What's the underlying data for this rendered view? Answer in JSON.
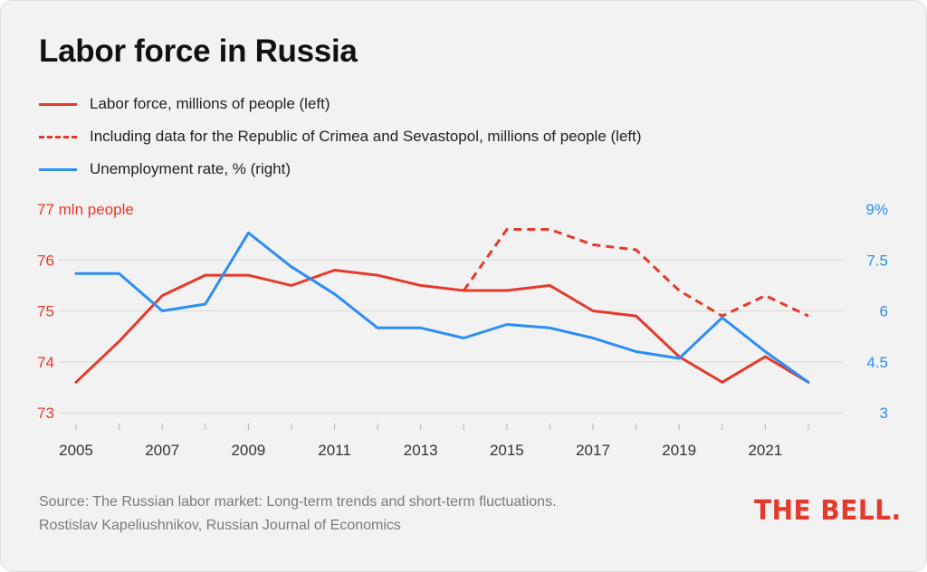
{
  "title": "Labor force in Russia",
  "legend": [
    {
      "label": "Labor force, millions of people (left)",
      "color": "#e43a2c",
      "style": "solid"
    },
    {
      "label": "Including data for the Republic of Crimea and Sevastopol, millions of people (left)",
      "color": "#e43a2c",
      "style": "dashed"
    },
    {
      "label": "Unemployment rate, % (right)",
      "color": "#2b8ef2",
      "style": "solid"
    }
  ],
  "source": "Source: The Russian labor market: Long-term trends and short-term fluctuations. Rostislav Kapeliushnikov, Russian Journal of Economics",
  "logo_text": "THE BELL.",
  "chart_data": {
    "type": "line",
    "title": "Labor force in Russia",
    "x": [
      2005,
      2006,
      2007,
      2008,
      2009,
      2010,
      2011,
      2012,
      2013,
      2014,
      2015,
      2016,
      2017,
      2018,
      2019,
      2020,
      2021,
      2022
    ],
    "x_range": [
      2004.6,
      2022.8
    ],
    "x_tick_labels": [
      "2005",
      "2007",
      "2009",
      "2011",
      "2013",
      "2015",
      "2017",
      "2019",
      "2021"
    ],
    "left_axis": {
      "ylim": [
        73,
        77
      ],
      "tick_values": [
        73,
        74,
        75,
        76,
        77
      ],
      "tick_labels": [
        "73",
        "74",
        "75",
        "76",
        "77 mln people"
      ],
      "color": "#e43a2c"
    },
    "right_axis": {
      "ylim": [
        3,
        9
      ],
      "tick_values": [
        3,
        4.5,
        6,
        7.5,
        9
      ],
      "tick_labels": [
        "3",
        "4.5",
        "6",
        "7.5",
        "9%"
      ],
      "color": "#2b8ef2"
    },
    "grid": true,
    "series": [
      {
        "name": "Labor force, millions of people (left)",
        "axis": "left",
        "color": "#e43a2c",
        "style": "solid",
        "x": [
          2005,
          2006,
          2007,
          2008,
          2009,
          2010,
          2011,
          2012,
          2013,
          2014,
          2015,
          2016,
          2017,
          2018,
          2019,
          2020,
          2021,
          2022
        ],
        "values": [
          73.6,
          74.4,
          75.3,
          75.7,
          75.7,
          75.5,
          75.8,
          75.7,
          75.5,
          75.4,
          75.4,
          75.5,
          75.0,
          74.9,
          74.1,
          73.6,
          74.1,
          73.6
        ]
      },
      {
        "name": "Including data for the Republic of Crimea and Sevastopol, millions of people (left)",
        "axis": "left",
        "color": "#e43a2c",
        "style": "dashed",
        "x": [
          2014,
          2015,
          2016,
          2017,
          2018,
          2019,
          2020,
          2021,
          2022
        ],
        "values": [
          75.4,
          76.6,
          76.6,
          76.3,
          76.2,
          75.4,
          74.9,
          75.3,
          74.9
        ]
      },
      {
        "name": "Unemployment rate, % (right)",
        "axis": "right",
        "color": "#2b8ef2",
        "style": "solid",
        "x": [
          2005,
          2006,
          2007,
          2008,
          2009,
          2010,
          2011,
          2012,
          2013,
          2014,
          2015,
          2016,
          2017,
          2018,
          2019,
          2020,
          2021,
          2022
        ],
        "values": [
          7.1,
          7.1,
          6.0,
          6.2,
          8.3,
          7.3,
          6.5,
          5.5,
          5.5,
          5.2,
          5.6,
          5.5,
          5.2,
          4.8,
          4.6,
          5.8,
          4.8,
          3.9
        ]
      }
    ]
  }
}
